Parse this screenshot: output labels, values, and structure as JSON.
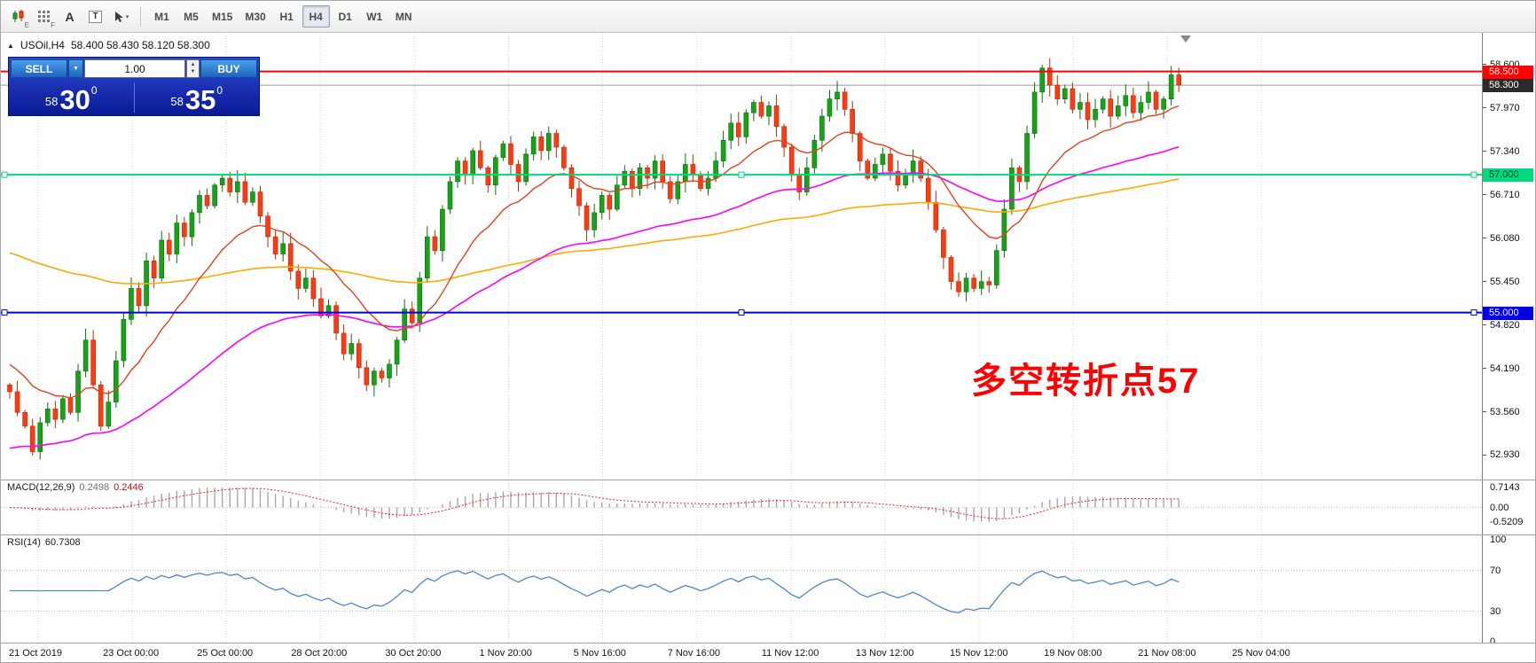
{
  "toolbar": {
    "icons": [
      {
        "name": "chart-candles-icon",
        "badge": "E"
      },
      {
        "name": "grid-icon",
        "badge": "F"
      },
      {
        "name": "font-tool-icon",
        "label": "A"
      },
      {
        "name": "text-tool-icon",
        "label": "T"
      },
      {
        "name": "cursor-tool-icon",
        "dropdown_icon": "▾"
      }
    ],
    "timeframes": [
      {
        "label": "M1",
        "active": false
      },
      {
        "label": "M5",
        "active": false
      },
      {
        "label": "M15",
        "active": false
      },
      {
        "label": "M30",
        "active": false
      },
      {
        "label": "H1",
        "active": false
      },
      {
        "label": "H4",
        "active": true
      },
      {
        "label": "D1",
        "active": false
      },
      {
        "label": "W1",
        "active": false
      },
      {
        "label": "MN",
        "active": false
      }
    ]
  },
  "chart": {
    "collapse_icon": "▲",
    "symbol_header": "USOil,H4",
    "ohlc_text": "58.400 58.430 58.120 58.300",
    "annotation": {
      "text": "多空转折点57",
      "color": "#FF0000"
    },
    "hlines": [
      {
        "price": 58.5,
        "color": "#FF0000",
        "badge": "58.500",
        "badge_fg": "#FFFFFF",
        "handles": false
      },
      {
        "price": 57.0,
        "color": "#00D97E",
        "badge": "57.000",
        "badge_fg": "#00361E",
        "handles": true
      },
      {
        "price": 55.0,
        "color": "#0000E8",
        "badge": "55.000",
        "badge_fg": "#FFFFFF",
        "handles": true
      }
    ],
    "bid": {
      "price": 58.3,
      "badge": "58.300",
      "badge_bg": "#2B2B2B",
      "badge_fg": "#FFFFFF"
    },
    "axis_labels": [
      "58.600",
      "57.970",
      "57.340",
      "56.710",
      "56.080",
      "55.450",
      "54.820",
      "54.190",
      "53.560",
      "52.930"
    ]
  },
  "trade_panel": {
    "sell_label": "SELL",
    "buy_label": "BUY",
    "volume": "1.00",
    "dropdown_icon": "▼",
    "spin_up": "▲",
    "spin_down": "▼",
    "sell_price_small": "58",
    "sell_price_big": "30",
    "sell_price_sup": "0",
    "buy_price_small": "58",
    "buy_price_big": "35",
    "buy_price_sup": "0"
  },
  "macd": {
    "title": "MACD(12,26,9)",
    "value1": "0.2498",
    "value2": "0.2446",
    "axis": [
      "0.7143",
      "0.00",
      "-0.5209"
    ]
  },
  "rsi": {
    "title": "RSI(14)",
    "value": "60.7308",
    "axis": [
      "100",
      "70",
      "30",
      "0"
    ],
    "levels": [
      70,
      30
    ]
  },
  "time_axis": {
    "labels": [
      "21 Oct 2019",
      "23 Oct 00:00",
      "25 Oct 00:00",
      "28 Oct 20:00",
      "30 Oct 20:00",
      "1 Nov 20:00",
      "5 Nov 16:00",
      "7 Nov 16:00",
      "11 Nov 12:00",
      "13 Nov 12:00",
      "15 Nov 12:00",
      "19 Nov 08:00",
      "21 Nov 08:00",
      "25 Nov 04:00"
    ]
  },
  "chart_data": {
    "type": "candlestick",
    "symbol": "USOil",
    "timeframe": "H4",
    "last_ohlc": {
      "open": 58.4,
      "high": 58.43,
      "low": 58.12,
      "close": 58.3
    },
    "price_axis": {
      "min": 52.93,
      "max": 58.6,
      "step": 0.63
    },
    "hline_levels": [
      58.5,
      57.0,
      55.0
    ],
    "bid_price": 58.3,
    "first_open": 53.95,
    "closes": [
      53.85,
      53.55,
      53.35,
      52.98,
      53.4,
      53.6,
      53.45,
      53.75,
      53.55,
      54.15,
      54.6,
      53.95,
      53.35,
      53.7,
      54.3,
      54.9,
      55.35,
      55.1,
      55.75,
      55.5,
      56.05,
      55.85,
      56.3,
      56.1,
      56.45,
      56.7,
      56.55,
      56.85,
      56.95,
      56.75,
      56.9,
      56.6,
      56.75,
      56.4,
      56.1,
      55.85,
      56.0,
      55.6,
      55.35,
      55.5,
      55.2,
      54.95,
      55.1,
      54.7,
      54.4,
      54.55,
      54.2,
      53.95,
      54.15,
      54.05,
      54.25,
      54.6,
      55.05,
      54.85,
      55.5,
      56.1,
      55.9,
      56.5,
      56.9,
      57.2,
      57.0,
      57.35,
      57.1,
      56.85,
      57.25,
      57.45,
      57.15,
      56.9,
      57.3,
      57.55,
      57.35,
      57.6,
      57.4,
      57.1,
      56.8,
      56.55,
      56.2,
      56.45,
      56.7,
      56.5,
      56.85,
      57.05,
      56.8,
      57.1,
      56.95,
      57.2,
      56.9,
      56.65,
      56.9,
      57.15,
      57.0,
      56.8,
      56.95,
      57.2,
      57.5,
      57.75,
      57.55,
      57.9,
      58.05,
      57.85,
      58.0,
      57.7,
      57.4,
      57.0,
      56.75,
      57.1,
      57.5,
      57.85,
      58.1,
      58.2,
      57.95,
      57.6,
      57.2,
      56.95,
      57.15,
      57.3,
      57.05,
      56.85,
      57.0,
      57.2,
      56.95,
      56.6,
      56.2,
      55.8,
      55.45,
      55.3,
      55.5,
      55.35,
      55.45,
      55.4,
      55.9,
      56.5,
      57.1,
      56.9,
      57.6,
      58.2,
      58.55,
      58.3,
      58.1,
      58.25,
      57.95,
      58.05,
      57.8,
      57.95,
      58.1,
      57.85,
      58.0,
      58.15,
      57.9,
      58.05,
      58.2,
      57.95,
      58.1,
      58.45,
      58.3
    ],
    "overlays": [
      {
        "name": "ma-fast",
        "color": "#E8401C"
      },
      {
        "name": "ma-mid",
        "color": "#FF00FF"
      },
      {
        "name": "ma-slow",
        "color": "#FFAA00"
      }
    ],
    "indicators": {
      "macd": {
        "params": [
          12,
          26,
          9
        ],
        "values": [
          0.2498,
          0.2446
        ],
        "axis_max": 0.7143,
        "axis_min": -0.5209
      },
      "rsi": {
        "period": 14,
        "value": 60.7308,
        "levels": [
          70,
          30
        ]
      }
    }
  }
}
